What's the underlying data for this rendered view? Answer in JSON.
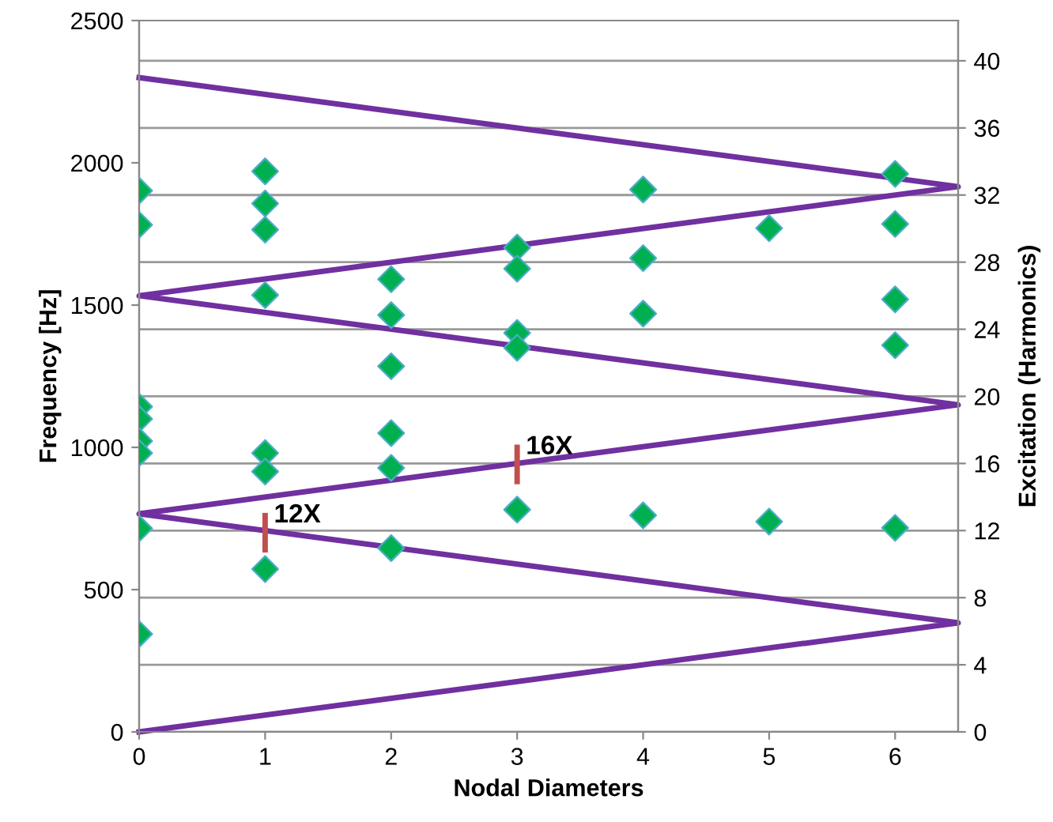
{
  "chart_data": {
    "type": "scatter",
    "xlabel": "Nodal Diameters",
    "ylabel": "Frequency [Hz]",
    "y2label": "Excitation (Harmonics)",
    "xlim": [
      0,
      6.5
    ],
    "xticks": [
      0,
      1,
      2,
      3,
      4,
      5,
      6
    ],
    "ylim": [
      0,
      2500
    ],
    "yticks": [
      0,
      500,
      1000,
      1500,
      2000,
      2500
    ],
    "y2lim": [
      0,
      42.4
    ],
    "y2ticks": [
      0,
      4,
      8,
      12,
      16,
      20,
      24,
      28,
      32,
      36,
      40
    ],
    "grid": "y2",
    "marker": "diamond",
    "series": [
      {
        "color": "#00b050",
        "x": [
          0,
          0,
          0,
          0,
          0,
          0,
          0,
          0,
          1,
          1,
          1,
          1,
          1,
          1,
          1,
          2,
          2,
          2,
          2,
          2,
          2,
          3,
          3,
          3,
          3,
          3,
          4,
          4,
          4,
          4,
          5,
          5,
          6,
          6,
          6,
          6,
          6
        ],
        "values": [
          1902,
          1782,
          1143,
          1100,
          1022,
          980,
          715,
          344,
          1970,
          1857,
          1765,
          1535,
          980,
          915,
          572,
          1591,
          1465,
          1285,
          1050,
          928,
          646,
          1702,
          1628,
          1402,
          1350,
          781,
          1906,
          1665,
          1470,
          761,
          1770,
          739,
          1961,
          1785,
          1520,
          1359,
          717
        ]
      },
      {
        "type": "line",
        "axis": "y2",
        "color": "#7030a0",
        "marker": "none",
        "x": [
          0,
          6.5,
          0,
          6.5,
          0,
          6.5,
          0
        ],
        "values": [
          0,
          6.5,
          13,
          19.5,
          26,
          32.5,
          39
        ]
      }
    ],
    "annotations": [
      {
        "text": "12X",
        "x": 1,
        "y": 700
      },
      {
        "text": "16X",
        "x": 3,
        "y": 940
      }
    ]
  }
}
